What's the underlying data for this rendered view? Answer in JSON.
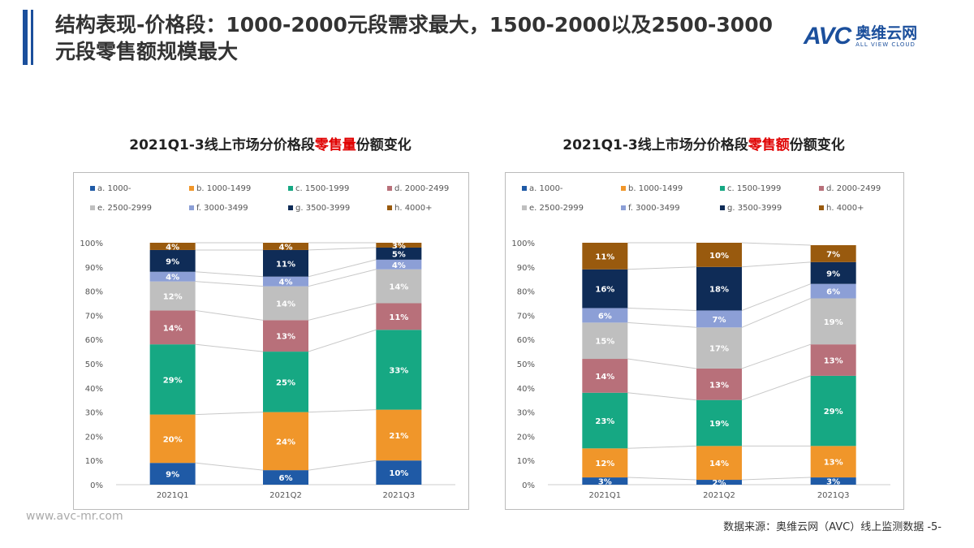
{
  "header": {
    "title": "结构表现-价格段：1000-2000元段需求最大，1500-2000以及2500-3000元段零售额规模最大",
    "logo_text": "AVC",
    "logo_cn": "奥维云网",
    "logo_en": "ALL VIEW CLOUD"
  },
  "footer": {
    "website": "www.avc-mr.com",
    "source": "数据来源：奥维云网（AVC）线上监测数据 -5-"
  },
  "colors": {
    "a": "#1f5aa6",
    "b": "#f0962a",
    "c": "#16a883",
    "d": "#b8707a",
    "e": "#bfbfbf",
    "f": "#8c9fd6",
    "g": "#0f2c57",
    "h": "#995a0e"
  },
  "chart_data": [
    {
      "type": "bar",
      "stacked": true,
      "title_prefix": "2021Q1-3线上市场分价格段",
      "title_highlight": "零售量",
      "title_suffix": "份额变化",
      "categories": [
        "2021Q1",
        "2021Q2",
        "2021Q3"
      ],
      "yticks": [
        "0%",
        "10%",
        "20%",
        "30%",
        "40%",
        "50%",
        "60%",
        "70%",
        "80%",
        "90%",
        "100%"
      ],
      "ylim": [
        0,
        100
      ],
      "legend": "top",
      "series": [
        {
          "key": "a",
          "name": "a. 1000-",
          "values": [
            9,
            6,
            10
          ]
        },
        {
          "key": "b",
          "name": "b. 1000-1499",
          "values": [
            20,
            24,
            21
          ]
        },
        {
          "key": "c",
          "name": "c. 1500-1999",
          "values": [
            29,
            25,
            33
          ]
        },
        {
          "key": "d",
          "name": "d. 2000-2499",
          "values": [
            14,
            13,
            11
          ]
        },
        {
          "key": "e",
          "name": "e. 2500-2999",
          "values": [
            12,
            14,
            14
          ]
        },
        {
          "key": "f",
          "name": "f. 3000-3499",
          "values": [
            4,
            4,
            4
          ]
        },
        {
          "key": "g",
          "name": "g. 3500-3999",
          "values": [
            9,
            11,
            5
          ]
        },
        {
          "key": "h",
          "name": "h. 4000+",
          "values": [
            4,
            4,
            3
          ]
        }
      ]
    },
    {
      "type": "bar",
      "stacked": true,
      "title_prefix": "2021Q1-3线上市场分价格段",
      "title_highlight": "零售额",
      "title_suffix": "份额变化",
      "categories": [
        "2021Q1",
        "2021Q2",
        "2021Q3"
      ],
      "yticks": [
        "0%",
        "10%",
        "20%",
        "30%",
        "40%",
        "50%",
        "60%",
        "70%",
        "80%",
        "90%",
        "100%"
      ],
      "ylim": [
        0,
        100
      ],
      "legend": "top",
      "series": [
        {
          "key": "a",
          "name": "a. 1000-",
          "values": [
            3,
            2,
            3
          ]
        },
        {
          "key": "b",
          "name": "b. 1000-1499",
          "values": [
            12,
            14,
            13
          ]
        },
        {
          "key": "c",
          "name": "c. 1500-1999",
          "values": [
            23,
            19,
            29
          ]
        },
        {
          "key": "d",
          "name": "d. 2000-2499",
          "values": [
            14,
            13,
            13
          ]
        },
        {
          "key": "e",
          "name": "e. 2500-2999",
          "values": [
            15,
            17,
            19
          ]
        },
        {
          "key": "f",
          "name": "f. 3000-3499",
          "values": [
            6,
            7,
            6
          ]
        },
        {
          "key": "g",
          "name": "g. 3500-3999",
          "values": [
            16,
            18,
            9
          ]
        },
        {
          "key": "h",
          "name": "h. 4000+",
          "values": [
            11,
            10,
            7
          ]
        }
      ]
    }
  ]
}
